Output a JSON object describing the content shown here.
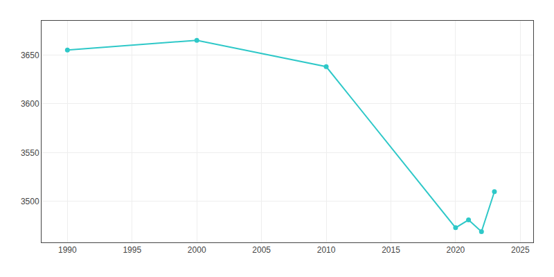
{
  "chart_data": {
    "type": "line",
    "x": [
      1990,
      2000,
      2010,
      2020,
      2021,
      2022,
      2023
    ],
    "values": [
      3655,
      3665,
      3638,
      3473,
      3481,
      3469,
      3510
    ],
    "color": "#2ec8c8",
    "marker": "circle",
    "xlim": [
      1988,
      2026
    ],
    "ylim": [
      3458,
      3685
    ],
    "xticks": [
      1990,
      1995,
      2000,
      2005,
      2010,
      2015,
      2020,
      2025
    ],
    "yticks": [
      3500,
      3550,
      3600,
      3650
    ],
    "grid": true
  }
}
